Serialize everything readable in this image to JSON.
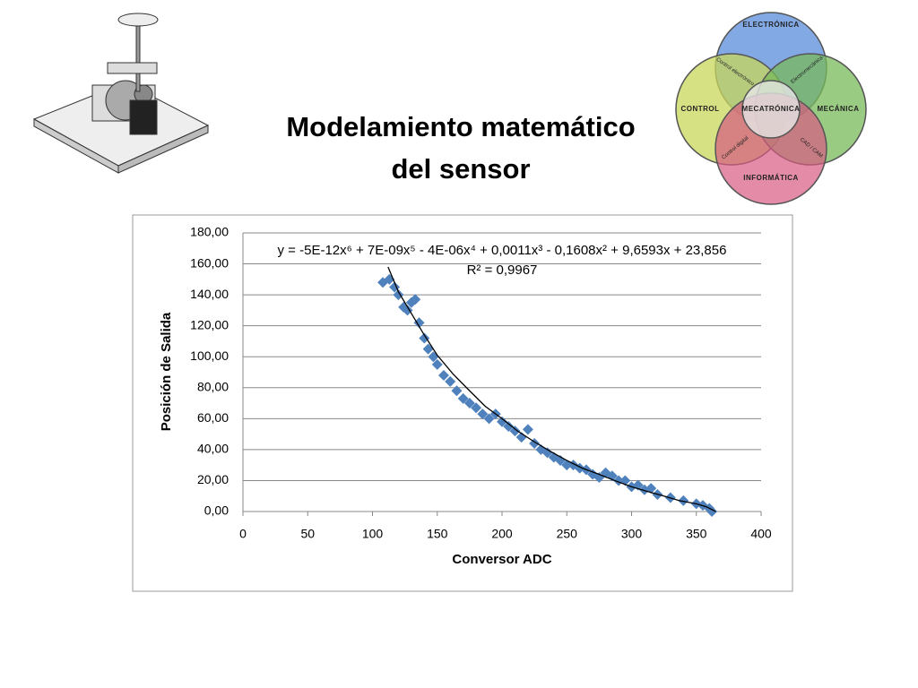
{
  "slide": {
    "title": [
      "Modelamiento matemático",
      "del sensor"
    ]
  },
  "venn": {
    "labels": [
      "ELECTRÓNICA",
      "MECÁNICA",
      "INFORMÁTICA",
      "CONTROL",
      "MECATRÓNICA",
      "Control electrónico",
      "Electromecánica",
      "CAD / CAM",
      "Control digital"
    ]
  },
  "chart_data": {
    "type": "scatter",
    "x": [
      108,
      113,
      117,
      120,
      124,
      127,
      130,
      133,
      136,
      140,
      143,
      147,
      150,
      155,
      160,
      165,
      170,
      175,
      180,
      185,
      190,
      195,
      200,
      205,
      210,
      215,
      220,
      225,
      230,
      235,
      240,
      245,
      250,
      255,
      260,
      265,
      270,
      275,
      280,
      285,
      290,
      295,
      300,
      305,
      310,
      315,
      320,
      330,
      340,
      350,
      355,
      360,
      362
    ],
    "values": [
      148,
      150,
      145,
      140,
      132,
      130,
      135,
      137,
      122,
      112,
      105,
      100,
      95,
      88,
      84,
      78,
      73,
      70,
      67,
      63,
      60,
      63,
      58,
      55,
      52,
      48,
      53,
      44,
      40,
      38,
      35,
      33,
      30,
      30,
      28,
      27,
      24,
      22,
      25,
      23,
      20,
      20,
      16,
      17,
      14,
      15,
      11,
      9,
      7,
      5,
      4,
      2,
      0
    ],
    "color": "#4f81bd",
    "trend_x": [
      112,
      120,
      130,
      140,
      150,
      162,
      175,
      187,
      200,
      212,
      225,
      237,
      250,
      262,
      275,
      287,
      300,
      312,
      325,
      337,
      350,
      358,
      365
    ],
    "trend_values": [
      158,
      142,
      128,
      114,
      101,
      89,
      78,
      68,
      60,
      52,
      45,
      39,
      33,
      28,
      24,
      20,
      16,
      13,
      10,
      7,
      5,
      3,
      0
    ],
    "trend_color": "#000000",
    "equation": "y = -5E-12x⁶ + 7E-09x⁵ - 4E-06x⁴ + 0,0011x³ - 0,1608x² + 9,6593x + 23,856",
    "r_squared": "R² = 0,9967",
    "x_label": "Conversor ADC",
    "y_label": "Posición de Salida",
    "xlim": [
      0,
      400
    ],
    "xticks": [
      0,
      50,
      100,
      150,
      200,
      250,
      300,
      350,
      400
    ],
    "ylim": [
      0,
      180
    ],
    "yticks": [
      {
        "value": 0,
        "label": "0,00"
      },
      {
        "value": 20,
        "label": "20,00"
      },
      {
        "value": 40,
        "label": "40,00"
      },
      {
        "value": 60,
        "label": "60,00"
      },
      {
        "value": 80,
        "label": "80,00"
      },
      {
        "value": 100,
        "label": "100,00"
      },
      {
        "value": 120,
        "label": "120,00"
      },
      {
        "value": 140,
        "label": "140,00"
      },
      {
        "value": 160,
        "label": "160,00"
      },
      {
        "value": 180,
        "label": "180,00"
      }
    ],
    "grid": true
  }
}
